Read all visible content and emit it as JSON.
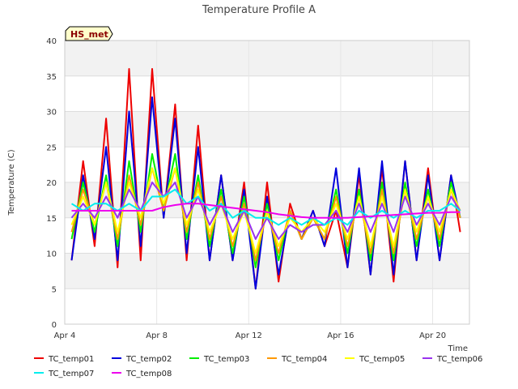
{
  "chart_data": {
    "type": "line",
    "title": "Temperature Profile A",
    "xlabel": "Time",
    "ylabel": "Temperature (C)",
    "ylim": [
      0,
      40
    ],
    "xlim_days": [
      4.0,
      21.6
    ],
    "y_ticks": [
      0,
      5,
      10,
      15,
      20,
      25,
      30,
      35,
      40
    ],
    "x_ticks": [
      {
        "day": 4,
        "label": "Apr 4"
      },
      {
        "day": 8,
        "label": "Apr 8"
      },
      {
        "day": 12,
        "label": "Apr 12"
      },
      {
        "day": 16,
        "label": "Apr 16"
      },
      {
        "day": 20,
        "label": "Apr 20"
      }
    ],
    "grid": true,
    "background_bands": true,
    "annotation": {
      "text": "HS_met",
      "fill": "#ffffcc",
      "text_color": "#8b0000"
    },
    "legend_position": "bottom",
    "series_style": [
      {
        "name": "TC_temp01",
        "color": "#ee0000"
      },
      {
        "name": "TC_temp02",
        "color": "#0000dd"
      },
      {
        "name": "TC_temp03",
        "color": "#00ee00"
      },
      {
        "name": "TC_temp04",
        "color": "#ff9900"
      },
      {
        "name": "TC_temp05",
        "color": "#ffff00"
      },
      {
        "name": "TC_temp06",
        "color": "#9933ee"
      },
      {
        "name": "TC_temp07",
        "color": "#00eeee"
      },
      {
        "name": "TC_temp08",
        "color": "#ee00ee"
      }
    ],
    "x_days": [
      4.3,
      4.8,
      5.3,
      5.8,
      6.3,
      6.8,
      7.3,
      7.8,
      8.3,
      8.8,
      9.3,
      9.8,
      10.3,
      10.8,
      11.3,
      11.8,
      12.3,
      12.8,
      13.3,
      13.8,
      14.3,
      14.8,
      15.3,
      15.8,
      16.3,
      16.8,
      17.3,
      17.8,
      18.3,
      18.8,
      19.3,
      19.8,
      20.3,
      20.8,
      21.2
    ],
    "series": [
      {
        "name": "TC_temp01",
        "values": [
          9,
          23,
          11,
          29,
          8,
          36,
          9,
          36,
          15,
          31,
          9,
          28,
          9,
          21,
          9,
          20,
          5,
          20,
          6,
          17,
          12,
          16,
          11,
          16,
          8,
          21,
          7,
          22,
          6,
          23,
          9,
          22,
          9,
          21,
          13
        ]
      },
      {
        "name": "TC_temp02",
        "values": [
          9,
          21,
          12,
          25,
          9,
          30,
          11,
          32,
          15,
          29,
          10,
          25,
          9,
          21,
          9,
          19,
          5,
          18,
          7,
          16,
          12,
          16,
          11,
          22,
          8,
          22,
          7,
          23,
          7,
          23,
          9,
          21,
          9,
          21,
          15
        ]
      },
      {
        "name": "TC_temp03",
        "values": [
          12,
          20,
          13,
          21,
          11,
          23,
          13,
          24,
          16,
          24,
          12,
          21,
          11,
          19,
          10,
          18,
          8,
          17,
          9,
          16,
          12,
          15,
          12,
          19,
          10,
          19,
          9,
          20,
          9,
          20,
          11,
          19,
          11,
          20,
          15
        ]
      },
      {
        "name": "TC_temp04",
        "values": [
          13,
          19,
          14,
          20,
          12,
          21,
          14,
          22,
          16,
          22,
          13,
          20,
          12,
          18,
          11,
          17,
          9,
          16,
          10,
          16,
          12,
          15,
          12,
          18,
          11,
          18,
          10,
          19,
          10,
          19,
          12,
          18,
          12,
          19,
          15
        ]
      },
      {
        "name": "TC_temp05",
        "values": [
          14,
          18,
          14,
          20,
          13,
          20,
          15,
          22,
          17,
          22,
          14,
          19,
          13,
          17,
          12,
          16,
          10,
          16,
          11,
          15,
          13,
          15,
          13,
          17,
          12,
          18,
          11,
          18,
          11,
          19,
          13,
          18,
          13,
          19,
          16
        ]
      },
      {
        "name": "TC_temp06",
        "values": [
          15,
          17,
          15,
          18,
          15,
          19,
          16,
          20,
          18,
          20,
          15,
          18,
          14,
          17,
          13,
          16,
          12,
          15,
          12,
          14,
          13,
          14,
          14,
          16,
          13,
          17,
          13,
          17,
          13,
          18,
          14,
          17,
          14,
          18,
          16
        ]
      },
      {
        "name": "TC_temp07",
        "values": [
          17,
          16,
          17,
          17,
          16,
          17,
          16,
          18,
          18,
          19,
          17,
          18,
          16,
          17,
          15,
          16,
          15,
          15,
          14,
          15,
          14,
          15,
          14,
          15,
          14,
          16,
          15,
          16,
          15,
          16,
          15,
          16,
          16,
          17,
          16
        ]
      },
      {
        "name": "TC_temp08",
        "values": [
          16,
          16,
          16,
          16,
          16,
          16,
          16,
          16,
          16.5,
          16.8,
          17,
          17,
          16.8,
          16.6,
          16.4,
          16.2,
          16,
          15.8,
          15.5,
          15.3,
          15.1,
          15,
          15,
          15,
          15,
          15.1,
          15.2,
          15.3,
          15.4,
          15.5,
          15.6,
          15.7,
          15.7,
          15.8,
          15.8
        ]
      }
    ]
  }
}
